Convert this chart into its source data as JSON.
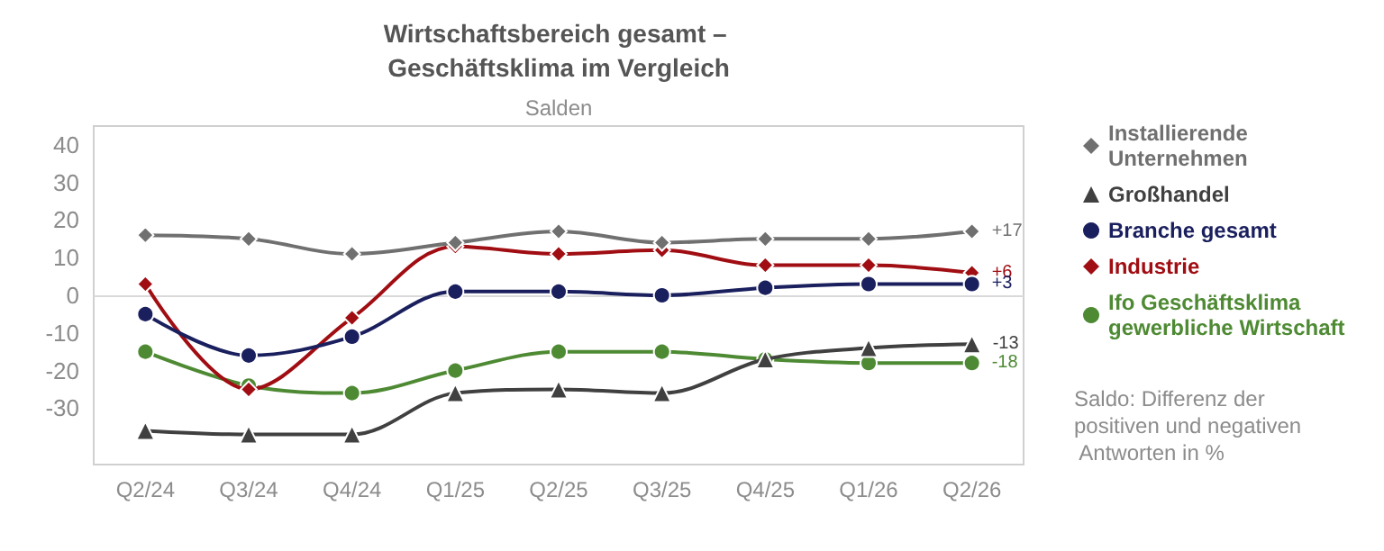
{
  "chart_data": {
    "type": "line",
    "title": "Wirtschaftsbereich gesamt – Geschäftsklima im Vergleich",
    "ylabel": "Salden",
    "categories": [
      "Q2/24",
      "Q3/24",
      "Q4/24",
      "Q1/25",
      "Q2/25",
      "Q3/25",
      "Q4/25",
      "Q1/26",
      "Q2/26"
    ],
    "series": [
      {
        "name": "Installierende Unternehmen",
        "color": "#707070",
        "marker": "diamond",
        "values": [
          16,
          15,
          11,
          14,
          17,
          14,
          15,
          15,
          17
        ],
        "value_labels": [
          null,
          null,
          null,
          null,
          null,
          null,
          null,
          null,
          "+17"
        ]
      },
      {
        "name": "Großhandel",
        "color": "#404040",
        "marker": "triangle",
        "values": [
          -36,
          -37,
          -37,
          -26,
          -25,
          -26,
          -17,
          -14,
          -13
        ],
        "value_labels": [
          null,
          null,
          null,
          null,
          null,
          null,
          null,
          null,
          "-13"
        ]
      },
      {
        "name": "Branche gesamt",
        "color": "#1a1f5e",
        "marker": "circle",
        "values": [
          -5,
          -16,
          -11,
          1,
          1,
          0,
          2,
          3,
          3
        ],
        "value_labels": [
          null,
          null,
          null,
          null,
          null,
          null,
          null,
          null,
          "+3"
        ]
      },
      {
        "name": "Industrie",
        "color": "#a00d12",
        "marker": "diamond",
        "values": [
          3,
          -25,
          -6,
          13,
          11,
          12,
          8,
          8,
          6
        ],
        "value_labels": [
          null,
          null,
          null,
          null,
          null,
          null,
          null,
          null,
          "+6"
        ]
      },
      {
        "name": "Ifo Geschäftsklima gewerbliche Wirtschaft",
        "color": "#4e8a33",
        "marker": "circle",
        "values": [
          -15,
          -24,
          -26,
          -20,
          -15,
          -15,
          -17,
          -18,
          -18
        ],
        "value_labels": [
          null,
          null,
          null,
          null,
          null,
          null,
          null,
          null,
          "-18"
        ]
      }
    ],
    "ylim": [
      -45,
      45
    ],
    "yticks": [
      -30,
      -20,
      -10,
      0,
      10,
      20,
      30,
      40
    ],
    "ref_lines": [
      {
        "axis": "y",
        "value": 0,
        "color": "#d9d9d9"
      }
    ],
    "grid": false,
    "legend": "right",
    "annotations": [
      "Saldo: Differenz der positiven und negativen Antworten in %"
    ]
  }
}
